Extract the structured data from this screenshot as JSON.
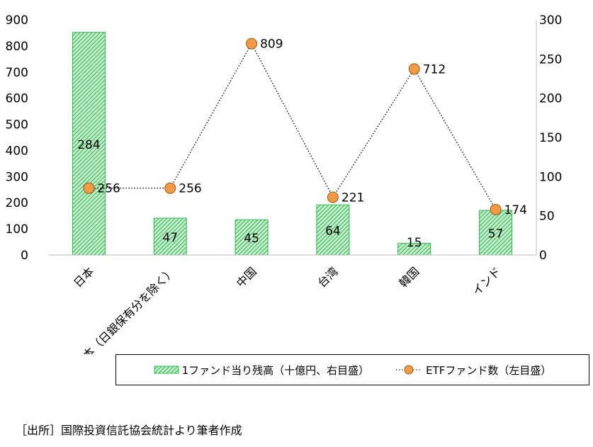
{
  "chart_data": {
    "type": "bar+line",
    "categories": [
      "日本",
      "日本（日銀保有分を除く）",
      "中国",
      "台湾",
      "韓国",
      "インド"
    ],
    "series": [
      {
        "name": "1ファンド当り残高（十億円、右目盛）",
        "type": "bar",
        "axis": "right",
        "values": [
          284,
          47,
          45,
          64,
          15,
          57
        ],
        "color": "#2eb84b"
      },
      {
        "name": "ETFファンド数（左目盛）",
        "type": "line",
        "axis": "left",
        "values": [
          256,
          256,
          809,
          221,
          712,
          174
        ],
        "color": "#f39a45"
      }
    ],
    "left_axis": {
      "ylim": [
        0,
        900
      ],
      "ticks": [
        "0",
        "100",
        "200",
        "300",
        "400",
        "500",
        "600",
        "700",
        "800",
        "900"
      ]
    },
    "right_axis": {
      "ylim": [
        0,
        300
      ],
      "ticks": [
        "0",
        "50",
        "100",
        "150",
        "200",
        "250",
        "300"
      ]
    },
    "grid": false,
    "legend_placement": "bottom"
  },
  "source": "［出所］国際投資信託協会統計より筆者作成"
}
